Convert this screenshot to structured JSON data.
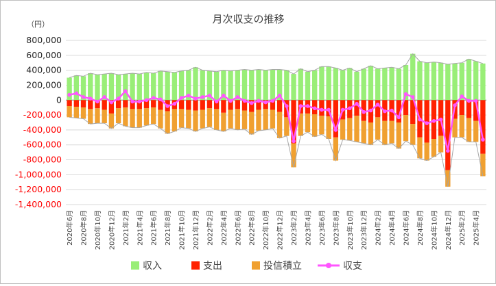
{
  "chart_data": {
    "type": "bar",
    "title": "月次収支の推移",
    "ylabel": "（円）",
    "ylim": [
      -1400000,
      800000
    ],
    "y_ticks": [
      800000,
      600000,
      400000,
      200000,
      0,
      -200000,
      -400000,
      -600000,
      -800000,
      -1000000,
      -1200000,
      -1400000
    ],
    "y_tick_labels": [
      "800,000",
      "600,000",
      "400,000",
      "200,000",
      "0",
      "-200,000",
      "-400,000",
      "-600,000",
      "-800,000",
      "-1,000,000",
      "-1,200,000",
      "-1,400,000"
    ],
    "negative_tick_color": "#ff0000",
    "grid": true,
    "legend_position": "bottom",
    "categories": [
      "2020年6月",
      "2020年7月",
      "2020年8月",
      "2020年9月",
      "2020年10月",
      "2020年11月",
      "2020年12月",
      "2021年1月",
      "2021年2月",
      "2021年3月",
      "2021年4月",
      "2021年5月",
      "2021年6月",
      "2021年7月",
      "2021年8月",
      "2021年9月",
      "2021年10月",
      "2021年11月",
      "2021年12月",
      "2022年1月",
      "2022年2月",
      "2022年3月",
      "2022年4月",
      "2022年5月",
      "2022年6月",
      "2022年7月",
      "2022年8月",
      "2022年9月",
      "2022年10月",
      "2022年11月",
      "2022年12月",
      "2023年1月",
      "2023年2月",
      "2023年3月",
      "2023年4月",
      "2023年5月",
      "2023年6月",
      "2023年7月",
      "2023年8月",
      "2023年9月",
      "2023年10月",
      "2023年11月",
      "2023年12月",
      "2024年1月",
      "2024年2月",
      "2024年3月",
      "2024年4月",
      "2024年5月",
      "2024年6月",
      "2024年7月",
      "2024年8月",
      "2024年9月",
      "2024年10月",
      "2024年11月",
      "2024年12月",
      "2025年1月",
      "2025年2月",
      "2025年3月",
      "2025年4月",
      "2025年5月"
    ],
    "tick_label_every": 2,
    "series": [
      {
        "name": "収入",
        "kind": "bar",
        "color": "#99ee77",
        "values": [
          300000,
          330000,
          320000,
          360000,
          340000,
          350000,
          360000,
          340000,
          350000,
          360000,
          350000,
          370000,
          360000,
          390000,
          380000,
          370000,
          390000,
          400000,
          440000,
          400000,
          390000,
          380000,
          400000,
          390000,
          400000,
          410000,
          400000,
          410000,
          400000,
          410000,
          410000,
          400000,
          350000,
          420000,
          380000,
          400000,
          450000,
          450000,
          430000,
          400000,
          430000,
          380000,
          420000,
          460000,
          420000,
          430000,
          440000,
          420000,
          470000,
          620000,
          520000,
          500000,
          510000,
          500000,
          480000,
          490000,
          500000,
          550000,
          520000,
          490000
        ]
      },
      {
        "name": "支出",
        "kind": "bar",
        "color": "#ff2200",
        "values": [
          -80000,
          -90000,
          -100000,
          -120000,
          -110000,
          -130000,
          -180000,
          -110000,
          -100000,
          -120000,
          -120000,
          -110000,
          -100000,
          -130000,
          -150000,
          -120000,
          -120000,
          -130000,
          -140000,
          -130000,
          -110000,
          -120000,
          -170000,
          -130000,
          -120000,
          -140000,
          -160000,
          -130000,
          -120000,
          -130000,
          -160000,
          -230000,
          -580000,
          -180000,
          -180000,
          -190000,
          -210000,
          -220000,
          -500000,
          -260000,
          -240000,
          -210000,
          -280000,
          -300000,
          -230000,
          -280000,
          -280000,
          -300000,
          -200000,
          -320000,
          -500000,
          -570000,
          -520000,
          -480000,
          -940000,
          -250000,
          -200000,
          -240000,
          -280000,
          -720000
        ]
      },
      {
        "name": "投信積立",
        "kind": "bar",
        "color": "#f0a030",
        "values": [
          -150000,
          -150000,
          -150000,
          -200000,
          -200000,
          -180000,
          -200000,
          -200000,
          -250000,
          -250000,
          -250000,
          -230000,
          -220000,
          -250000,
          -300000,
          -300000,
          -250000,
          -250000,
          -280000,
          -250000,
          -250000,
          -280000,
          -250000,
          -250000,
          -280000,
          -250000,
          -300000,
          -280000,
          -280000,
          -250000,
          -350000,
          -250000,
          -320000,
          -300000,
          -250000,
          -300000,
          -250000,
          -300000,
          -310000,
          -270000,
          -300000,
          -350000,
          -300000,
          -300000,
          -300000,
          -320000,
          -300000,
          -350000,
          -350000,
          -280000,
          -280000,
          -240000,
          -240000,
          -220000,
          -220000,
          -250000,
          -300000,
          -320000,
          -280000,
          -300000
        ]
      },
      {
        "name": "収支",
        "kind": "line",
        "color": "#ff55ff",
        "values": [
          70000,
          90000,
          40000,
          20000,
          -20000,
          40000,
          -30000,
          20000,
          120000,
          -20000,
          -20000,
          0,
          30000,
          10000,
          -80000,
          -50000,
          30000,
          60000,
          20000,
          40000,
          60000,
          -20000,
          60000,
          -10000,
          40000,
          -10000,
          -40000,
          -10000,
          -30000,
          -10000,
          60000,
          -80000,
          -550000,
          -80000,
          -80000,
          -110000,
          -130000,
          -130000,
          -400000,
          -130000,
          -110000,
          -50000,
          -160000,
          -140000,
          -60000,
          -150000,
          -140000,
          -230000,
          80000,
          40000,
          -260000,
          -310000,
          -280000,
          -260000,
          -680000,
          -70000,
          50000,
          -10000,
          -10000,
          -530000
        ]
      }
    ]
  }
}
